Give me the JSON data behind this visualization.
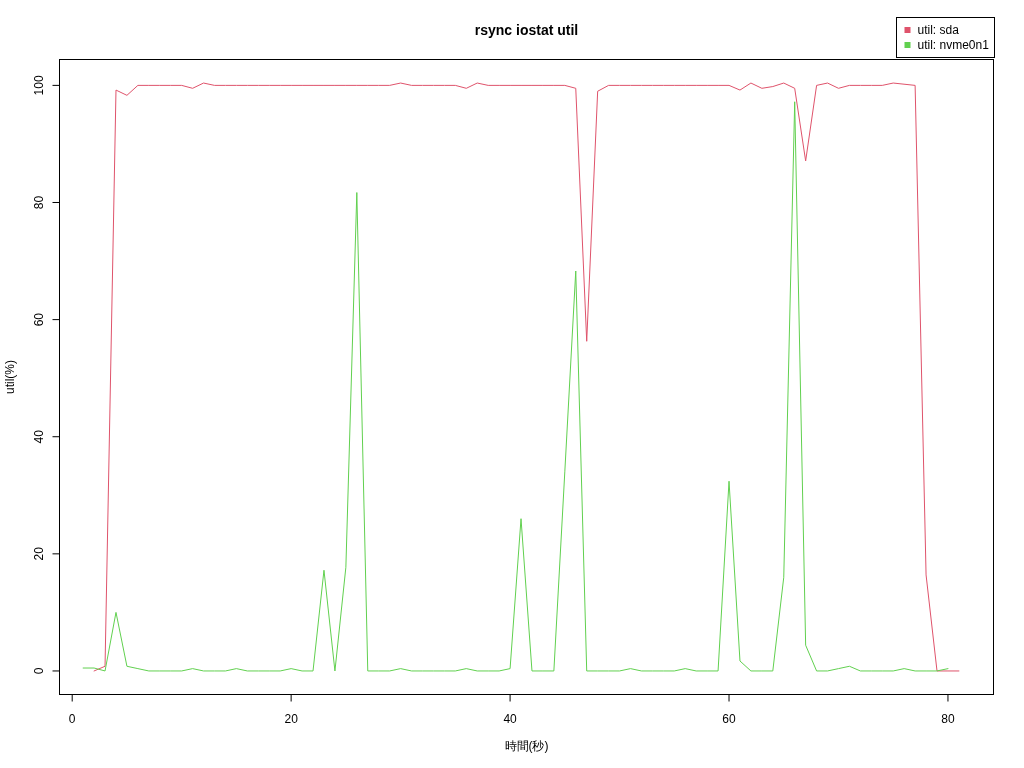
{
  "chart_data": {
    "type": "line",
    "title": "rsync iostat util",
    "xlabel": "時間(秒)",
    "ylabel": "util(%)",
    "xlim": [
      -1.16,
      84.16
    ],
    "ylim": [
      -4.02,
      104.42
    ],
    "xticks": [
      0,
      20,
      40,
      60,
      80
    ],
    "yticks": [
      0,
      20,
      40,
      60,
      80,
      100
    ],
    "legend": "top right",
    "line_style": "solid",
    "series": [
      {
        "name": "util: sda",
        "color": "#df536b",
        "x": [
          2,
          3,
          4,
          5,
          6,
          7,
          8,
          9,
          10,
          11,
          12,
          13,
          14,
          15,
          16,
          17,
          18,
          19,
          20,
          21,
          22,
          23,
          24,
          25,
          26,
          27,
          28,
          29,
          30,
          31,
          32,
          33,
          34,
          35,
          36,
          37,
          38,
          39,
          40,
          41,
          42,
          43,
          44,
          45,
          46,
          47,
          48,
          49,
          50,
          51,
          52,
          53,
          54,
          55,
          56,
          57,
          58,
          59,
          60,
          61,
          62,
          63,
          64,
          65,
          66,
          67,
          68,
          69,
          70,
          71,
          72,
          73,
          74,
          75,
          77,
          78,
          79,
          80,
          81
        ],
        "values": [
          0,
          0.8,
          99.2,
          98.3,
          100,
          100,
          100,
          100,
          100,
          99.5,
          100.4,
          100,
          100,
          100,
          100,
          100,
          100,
          100,
          100,
          100,
          100,
          100,
          100,
          100,
          100,
          100,
          100,
          100,
          100.4,
          100,
          100,
          100,
          100,
          100,
          99.5,
          100.4,
          100,
          100,
          100,
          100,
          100,
          100,
          100,
          100,
          99.5,
          56.3,
          99,
          100,
          100,
          100,
          100,
          100,
          100,
          100,
          100,
          100,
          100,
          100,
          100,
          99.2,
          100.4,
          99.5,
          99.8,
          100.4,
          99.5,
          87.1,
          100,
          100.4,
          99.5,
          100,
          100,
          100,
          100,
          100.4,
          100,
          16.4,
          0,
          0,
          0
        ]
      },
      {
        "name": "util: nvme0n1",
        "color": "#61d04f",
        "x": [
          1,
          2,
          3,
          4,
          5,
          6,
          7,
          8,
          9,
          10,
          11,
          12,
          13,
          14,
          15,
          16,
          17,
          18,
          19,
          20,
          21,
          22,
          23,
          24,
          25,
          26,
          27,
          28,
          29,
          30,
          31,
          32,
          33,
          34,
          35,
          36,
          37,
          38,
          39,
          40,
          41,
          42,
          43,
          44,
          45,
          46,
          47,
          48,
          49,
          50,
          51,
          52,
          53,
          54,
          55,
          56,
          57,
          58,
          59,
          60,
          61,
          62,
          63,
          64,
          65,
          66,
          67,
          68,
          69,
          70,
          71,
          72,
          73,
          74,
          75,
          76,
          77,
          78,
          79,
          80
        ],
        "values": [
          0.5,
          0.5,
          0,
          10,
          0.8,
          0.4,
          0,
          0,
          0,
          0,
          0.4,
          0,
          0,
          0,
          0.4,
          0,
          0,
          0,
          0,
          0.4,
          0,
          0,
          17.2,
          0,
          17.7,
          81.7,
          0,
          0,
          0,
          0.4,
          0,
          0,
          0,
          0,
          0,
          0.4,
          0,
          0,
          0,
          0.4,
          26,
          0,
          0,
          0,
          34,
          68.3,
          0,
          0,
          0,
          0,
          0.4,
          0,
          0,
          0,
          0,
          0.4,
          0,
          0,
          0,
          32.4,
          1.7,
          0,
          0,
          0,
          16,
          97.2,
          4.4,
          0,
          0,
          0.4,
          0.8,
          0,
          0,
          0,
          0,
          0.4,
          0,
          0,
          0,
          0.4
        ]
      }
    ]
  }
}
